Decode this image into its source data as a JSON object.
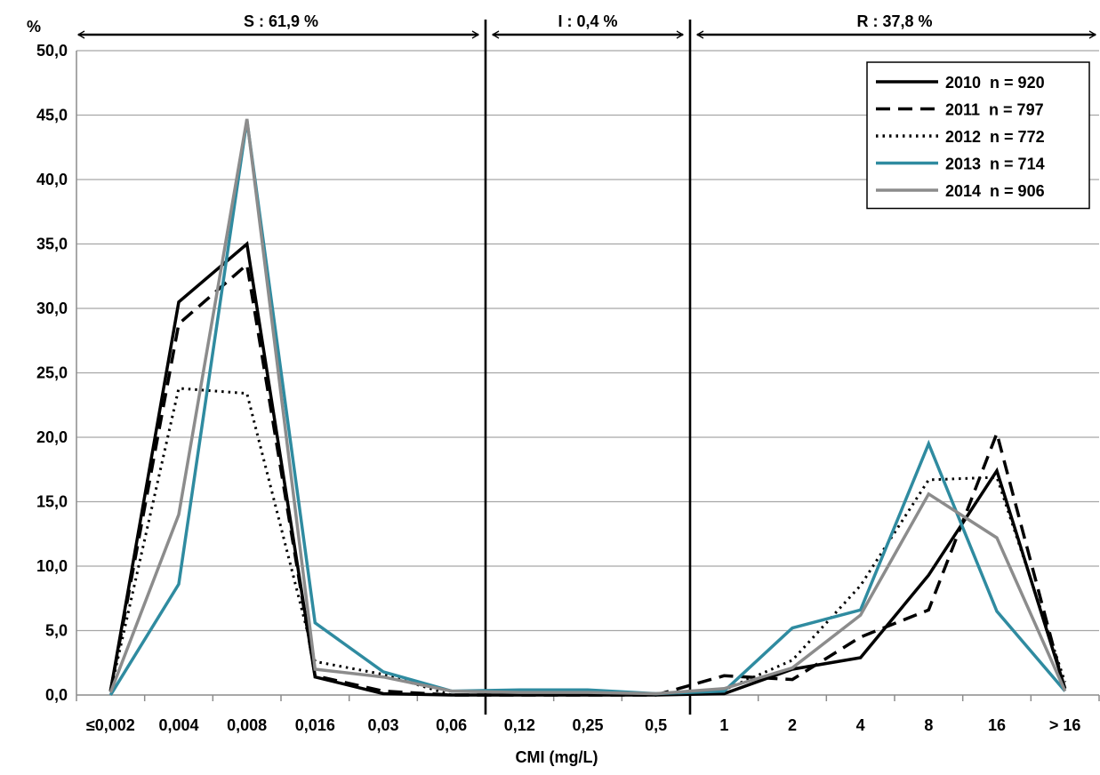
{
  "chart_data": {
    "type": "line",
    "title": "",
    "ylabel": "%",
    "xlabel": "CMI (mg/L)",
    "ylim": [
      0,
      50
    ],
    "yticks": [
      "0,0",
      "5,0",
      "10,0",
      "15,0",
      "20,0",
      "25,0",
      "30,0",
      "35,0",
      "40,0",
      "45,0",
      "50,0"
    ],
    "categories": [
      "≤0,002",
      "0,004",
      "0,008",
      "0,016",
      "0,03",
      "0,06",
      "0,12",
      "0,25",
      "0,5",
      "1",
      "2",
      "4",
      "8",
      "16",
      "> 16"
    ],
    "grid": "horizontal",
    "legend_position": "top-right",
    "bands": [
      {
        "label": "S : 61,9 %",
        "from": -0.5,
        "to": 5.5
      },
      {
        "label": "I : 0,4 %",
        "from": 5.5,
        "to": 8.5
      },
      {
        "label": "R : 37,8 %",
        "from": 8.5,
        "to": 14.5
      }
    ],
    "series": [
      {
        "name": "2010  n = 920",
        "color": "#000000",
        "style": "solid",
        "values": [
          0.3,
          30.5,
          35.0,
          1.4,
          0.1,
          0.0,
          0.0,
          0.0,
          0.0,
          0.1,
          2.0,
          2.9,
          9.3,
          17.4,
          0.5
        ]
      },
      {
        "name": "2011  n = 797",
        "color": "#000000",
        "style": "dashed",
        "values": [
          0.3,
          28.8,
          33.4,
          1.5,
          0.3,
          0.0,
          0.0,
          0.0,
          0.0,
          1.5,
          1.2,
          4.5,
          6.6,
          20.3,
          0.3
        ]
      },
      {
        "name": "2012  n = 772",
        "color": "#000000",
        "style": "dotted",
        "values": [
          0.3,
          23.8,
          23.4,
          2.6,
          1.6,
          0.0,
          0.0,
          0.0,
          0.0,
          0.4,
          2.7,
          8.5,
          16.7,
          16.9,
          1.0
        ]
      },
      {
        "name": "2013  n = 714",
        "color": "#2f8ba0",
        "style": "solid",
        "values": [
          0.0,
          8.6,
          44.6,
          5.6,
          1.8,
          0.3,
          0.4,
          0.4,
          0.1,
          0.3,
          5.2,
          6.6,
          19.5,
          6.5,
          0.3
        ]
      },
      {
        "name": "2014  n = 906",
        "color": "#8c8c8c",
        "style": "solid",
        "values": [
          0.2,
          14.0,
          44.7,
          2.0,
          1.4,
          0.3,
          0.2,
          0.2,
          0.1,
          0.5,
          2.1,
          6.2,
          15.6,
          12.2,
          0.3
        ]
      }
    ]
  }
}
